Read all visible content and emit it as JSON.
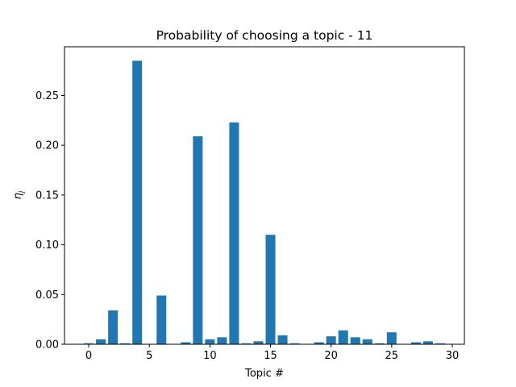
{
  "chart_data": {
    "type": "bar",
    "title": "Probability of choosing a topic - 11",
    "xlabel": "Topic #",
    "ylabel": "η_j",
    "ylabel_main": "η",
    "ylabel_sub": "j",
    "x": [
      0,
      1,
      2,
      3,
      4,
      5,
      6,
      7,
      8,
      9,
      10,
      11,
      12,
      13,
      14,
      15,
      16,
      17,
      18,
      19,
      20,
      21,
      22,
      23,
      24,
      25,
      26,
      27,
      28,
      29
    ],
    "values": [
      0.001,
      0.005,
      0.034,
      0.001,
      0.285,
      0.0,
      0.049,
      0.0,
      0.002,
      0.209,
      0.005,
      0.007,
      0.223,
      0.001,
      0.003,
      0.11,
      0.009,
      0.001,
      0.0,
      0.002,
      0.008,
      0.014,
      0.007,
      0.005,
      0.001,
      0.012,
      0.0,
      0.002,
      0.003,
      0.001
    ],
    "xlim": [
      -2,
      31
    ],
    "ylim": [
      0,
      0.299
    ],
    "xticks": [
      0,
      5,
      10,
      15,
      20,
      25,
      30
    ],
    "xtick_labels": [
      "0",
      "5",
      "10",
      "15",
      "20",
      "25",
      "30"
    ],
    "yticks": [
      0.0,
      0.05,
      0.1,
      0.15,
      0.2,
      0.25
    ],
    "ytick_labels": [
      "0.00",
      "0.05",
      "0.10",
      "0.15",
      "0.20",
      "0.25"
    ],
    "grid": false,
    "bar_color": "#1f77b4"
  }
}
